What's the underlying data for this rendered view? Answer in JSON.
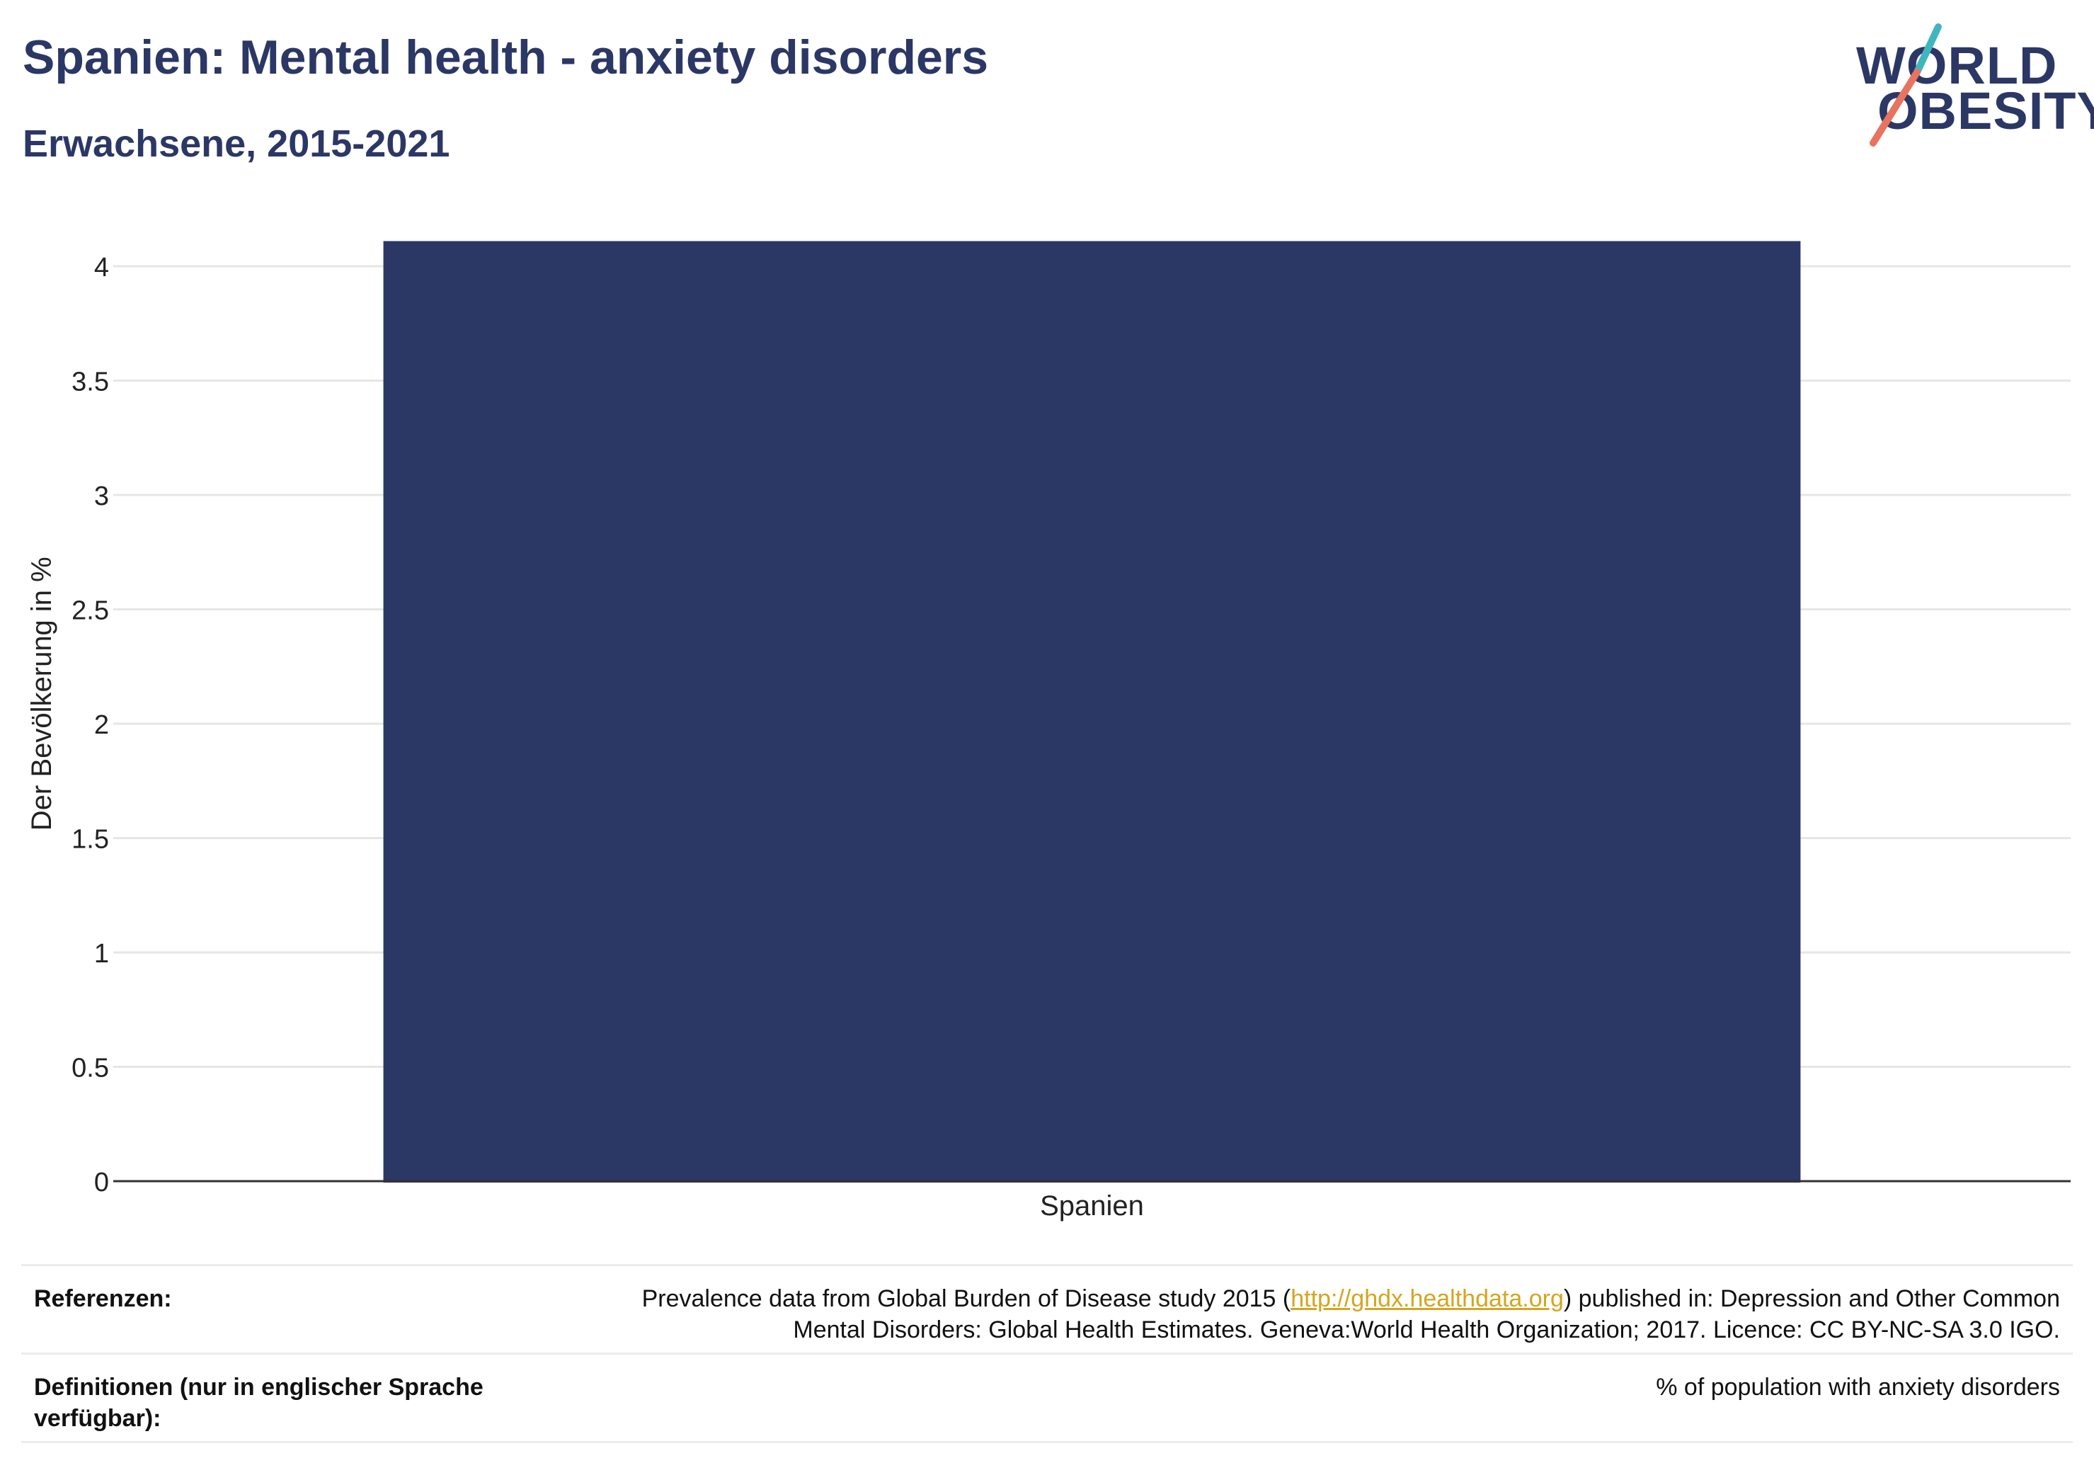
{
  "header": {
    "title": "Spanien: Mental health - anxiety disorders",
    "subtitle": "Erwachsene, 2015-2021"
  },
  "logo": {
    "line1": "WORLD",
    "line2": "OBESITY",
    "colors": {
      "text": "#2b3765",
      "slash_top": "#3fb6bd",
      "slash_bottom": "#e8735f"
    }
  },
  "chart_data": {
    "type": "bar",
    "categories": [
      "Spanien"
    ],
    "values": [
      4.11
    ],
    "ylabel": "Der Bevölkerung in %",
    "xlabel": "",
    "ylim": [
      0,
      4.2
    ],
    "yticks": [
      0,
      0.5,
      1,
      1.5,
      2,
      2.5,
      3,
      3.5,
      4
    ],
    "ytick_labels": [
      "0",
      "0.5",
      "1",
      "1.5",
      "2",
      "2.5",
      "3",
      "3.5",
      "4"
    ],
    "grid": true,
    "bar_color": "#2b3765"
  },
  "references": {
    "refs_label": "Referenzen:",
    "refs_text_before": "Prevalence data from Global Burden of Disease study 2015 (",
    "refs_link": "http://ghdx.healthdata.org",
    "refs_text_after": ") published in: Depression and Other Common",
    "refs_text_line2": "Mental Disorders: Global Health Estimates. Geneva:World Health Organization; 2017. Licence: CC BY-NC-SA 3.0 IGO.",
    "defs_label": "Definitionen (nur in englischer Sprache verfügbar):",
    "defs_text": "% of population with anxiety disorders"
  }
}
